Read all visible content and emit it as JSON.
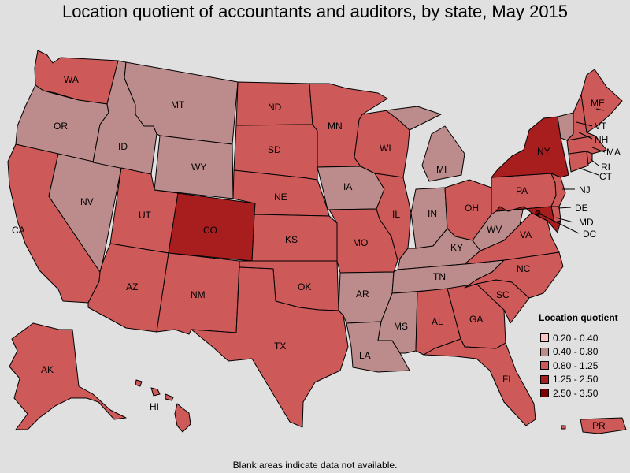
{
  "title": "Location quotient of accountants and auditors, by state, May 2015",
  "footnote": "Blank areas indicate data not available.",
  "legend": {
    "title": "Location quotient",
    "items": [
      {
        "range": "0.20 - 0.40",
        "color": "#f9c5c5"
      },
      {
        "range": "0.40 - 0.80",
        "color": "#bc8c8c"
      },
      {
        "range": "0.80 - 1.25",
        "color": "#cd5959"
      },
      {
        "range": "1.25 - 2.50",
        "color": "#a81e1e"
      },
      {
        "range": "2.50 - 3.50",
        "color": "#7a0000"
      }
    ]
  },
  "states": [
    {
      "code": "WA",
      "class": "0.80 - 1.25"
    },
    {
      "code": "OR",
      "class": "0.40 - 0.80"
    },
    {
      "code": "CA",
      "class": "0.80 - 1.25"
    },
    {
      "code": "NV",
      "class": "0.40 - 0.80"
    },
    {
      "code": "ID",
      "class": "0.40 - 0.80"
    },
    {
      "code": "MT",
      "class": "0.40 - 0.80"
    },
    {
      "code": "WY",
      "class": "0.40 - 0.80"
    },
    {
      "code": "UT",
      "class": "0.80 - 1.25"
    },
    {
      "code": "CO",
      "class": "1.25 - 2.50"
    },
    {
      "code": "AZ",
      "class": "0.80 - 1.25"
    },
    {
      "code": "NM",
      "class": "0.80 - 1.25"
    },
    {
      "code": "ND",
      "class": "0.80 - 1.25"
    },
    {
      "code": "SD",
      "class": "0.80 - 1.25"
    },
    {
      "code": "NE",
      "class": "0.80 - 1.25"
    },
    {
      "code": "KS",
      "class": "0.80 - 1.25"
    },
    {
      "code": "OK",
      "class": "0.80 - 1.25"
    },
    {
      "code": "TX",
      "class": "0.80 - 1.25"
    },
    {
      "code": "MN",
      "class": "0.80 - 1.25"
    },
    {
      "code": "IA",
      "class": "0.40 - 0.80"
    },
    {
      "code": "MO",
      "class": "0.80 - 1.25"
    },
    {
      "code": "AR",
      "class": "0.40 - 0.80"
    },
    {
      "code": "LA",
      "class": "0.40 - 0.80"
    },
    {
      "code": "WI",
      "class": "0.80 - 1.25"
    },
    {
      "code": "IL",
      "class": "0.80 - 1.25"
    },
    {
      "code": "MI",
      "class": "0.40 - 0.80"
    },
    {
      "code": "IN",
      "class": "0.40 - 0.80"
    },
    {
      "code": "OH",
      "class": "0.80 - 1.25"
    },
    {
      "code": "KY",
      "class": "0.40 - 0.80"
    },
    {
      "code": "TN",
      "class": "0.40 - 0.80"
    },
    {
      "code": "MS",
      "class": "0.40 - 0.80"
    },
    {
      "code": "AL",
      "class": "0.80 - 1.25"
    },
    {
      "code": "GA",
      "class": "0.80 - 1.25"
    },
    {
      "code": "FL",
      "class": "0.80 - 1.25"
    },
    {
      "code": "SC",
      "class": "0.80 - 1.25"
    },
    {
      "code": "NC",
      "class": "0.80 - 1.25"
    },
    {
      "code": "VA",
      "class": "0.80 - 1.25"
    },
    {
      "code": "WV",
      "class": "0.40 - 0.80"
    },
    {
      "code": "PA",
      "class": "0.80 - 1.25"
    },
    {
      "code": "NY",
      "class": "1.25 - 2.50"
    },
    {
      "code": "NJ",
      "class": "0.80 - 1.25"
    },
    {
      "code": "DE",
      "class": "0.80 - 1.25"
    },
    {
      "code": "MD",
      "class": "1.25 - 2.50"
    },
    {
      "code": "DC",
      "class": "2.50 - 3.50"
    },
    {
      "code": "CT",
      "class": "0.80 - 1.25"
    },
    {
      "code": "RI",
      "class": "0.80 - 1.25"
    },
    {
      "code": "MA",
      "class": "0.80 - 1.25"
    },
    {
      "code": "VT",
      "class": "0.40 - 0.80"
    },
    {
      "code": "NH",
      "class": "0.80 - 1.25"
    },
    {
      "code": "ME",
      "class": "0.80 - 1.25"
    },
    {
      "code": "AK",
      "class": "0.80 - 1.25"
    },
    {
      "code": "HI",
      "class": "0.80 - 1.25"
    },
    {
      "code": "PR",
      "class": "0.80 - 1.25"
    }
  ]
}
